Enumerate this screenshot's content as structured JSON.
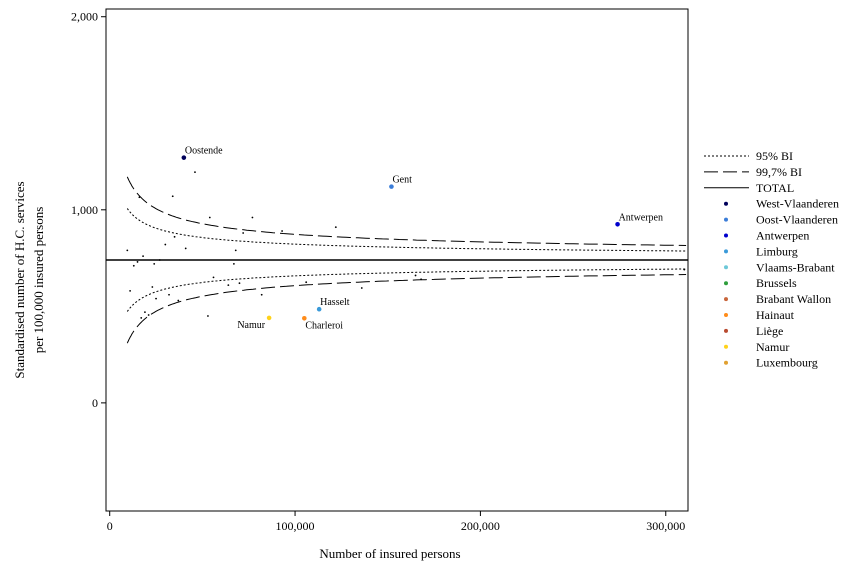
{
  "chart_data": {
    "type": "scatter",
    "title": "",
    "xlabel": "Number of insured persons",
    "ylabel_lines": [
      "Standardised number of H.C. services",
      "per 100,000 insured persons"
    ],
    "xlim": [
      -2000,
      312000
    ],
    "ylim": [
      -560,
      2040
    ],
    "x_ticks": [
      0,
      100000,
      200000,
      300000
    ],
    "x_tick_labels": [
      "0",
      "100,000",
      "200,000",
      "300,000"
    ],
    "y_ticks": [
      0,
      1000,
      2000
    ],
    "y_tick_labels": [
      "0",
      "1,000",
      "2,000"
    ],
    "grid": false,
    "legend_position": "right",
    "total": 740,
    "bands": {
      "bi95_coef": 26000,
      "bi997_coef": 42000,
      "x_start": 9500,
      "x_end": 311000
    },
    "legend": [
      {
        "label": "95% BI",
        "kind": "dotted"
      },
      {
        "label": "99,7% BI",
        "kind": "dashed"
      },
      {
        "label": "TOTAL",
        "kind": "solid"
      },
      {
        "label": "West-Vlaanderen",
        "kind": "dot",
        "color": "#00005a"
      },
      {
        "label": "Oost-Vlaanderen",
        "kind": "dot",
        "color": "#3b7dd8"
      },
      {
        "label": "Antwerpen",
        "kind": "dot",
        "color": "#0000cc"
      },
      {
        "label": "Limburg",
        "kind": "dot",
        "color": "#3a9ad9"
      },
      {
        "label": "Vlaams-Brabant",
        "kind": "dot",
        "color": "#6dc8d8"
      },
      {
        "label": "Brussels",
        "kind": "dot",
        "color": "#2e9e3c"
      },
      {
        "label": "Brabant Wallon",
        "kind": "dot",
        "color": "#c8663c"
      },
      {
        "label": "Hainaut",
        "kind": "dot",
        "color": "#ff8c1a"
      },
      {
        "label": "Liège",
        "kind": "dot",
        "color": "#b84a30"
      },
      {
        "label": "Namur",
        "kind": "dot",
        "color": "#ffd21a"
      },
      {
        "label": "Luxembourg",
        "kind": "dot",
        "color": "#e0a030"
      }
    ],
    "highlighted": [
      {
        "label": "Oostende",
        "x": 40000,
        "y": 1270,
        "color": "#00005a",
        "anchor": "start"
      },
      {
        "label": "Gent",
        "x": 152000,
        "y": 1120,
        "color": "#3b7dd8",
        "anchor": "start"
      },
      {
        "label": "Antwerpen",
        "x": 274000,
        "y": 925,
        "color": "#0000cc",
        "anchor": "start"
      },
      {
        "label": "Hasselt",
        "x": 113000,
        "y": 485,
        "color": "#3a9ad9",
        "anchor": "start"
      },
      {
        "label": "Namur",
        "x": 86000,
        "y": 440,
        "color": "#ffd21a",
        "anchor": "end"
      },
      {
        "label": "Charleroi",
        "x": 105000,
        "y": 438,
        "color": "#ff8c1a",
        "anchor": "start"
      }
    ],
    "points": [
      [
        9500,
        790
      ],
      [
        11000,
        580
      ],
      [
        13000,
        710
      ],
      [
        15000,
        730
      ],
      [
        16000,
        1065
      ],
      [
        17000,
        440
      ],
      [
        18000,
        760
      ],
      [
        19000,
        470
      ],
      [
        21000,
        455
      ],
      [
        23000,
        600
      ],
      [
        24000,
        720
      ],
      [
        25000,
        540
      ],
      [
        27000,
        740
      ],
      [
        30000,
        820
      ],
      [
        32000,
        560
      ],
      [
        34000,
        1070
      ],
      [
        35000,
        860
      ],
      [
        37000,
        530
      ],
      [
        41000,
        800
      ],
      [
        46000,
        1195
      ],
      [
        53000,
        450
      ],
      [
        54000,
        960
      ],
      [
        56000,
        650
      ],
      [
        64000,
        610
      ],
      [
        67000,
        720
      ],
      [
        68000,
        790
      ],
      [
        70000,
        620
      ],
      [
        72000,
        880
      ],
      [
        77000,
        960
      ],
      [
        82000,
        560
      ],
      [
        93000,
        890
      ],
      [
        106000,
        625
      ],
      [
        122000,
        910
      ],
      [
        136000,
        595
      ],
      [
        165000,
        660
      ],
      [
        168000,
        640
      ],
      [
        310000,
        690
      ]
    ]
  }
}
